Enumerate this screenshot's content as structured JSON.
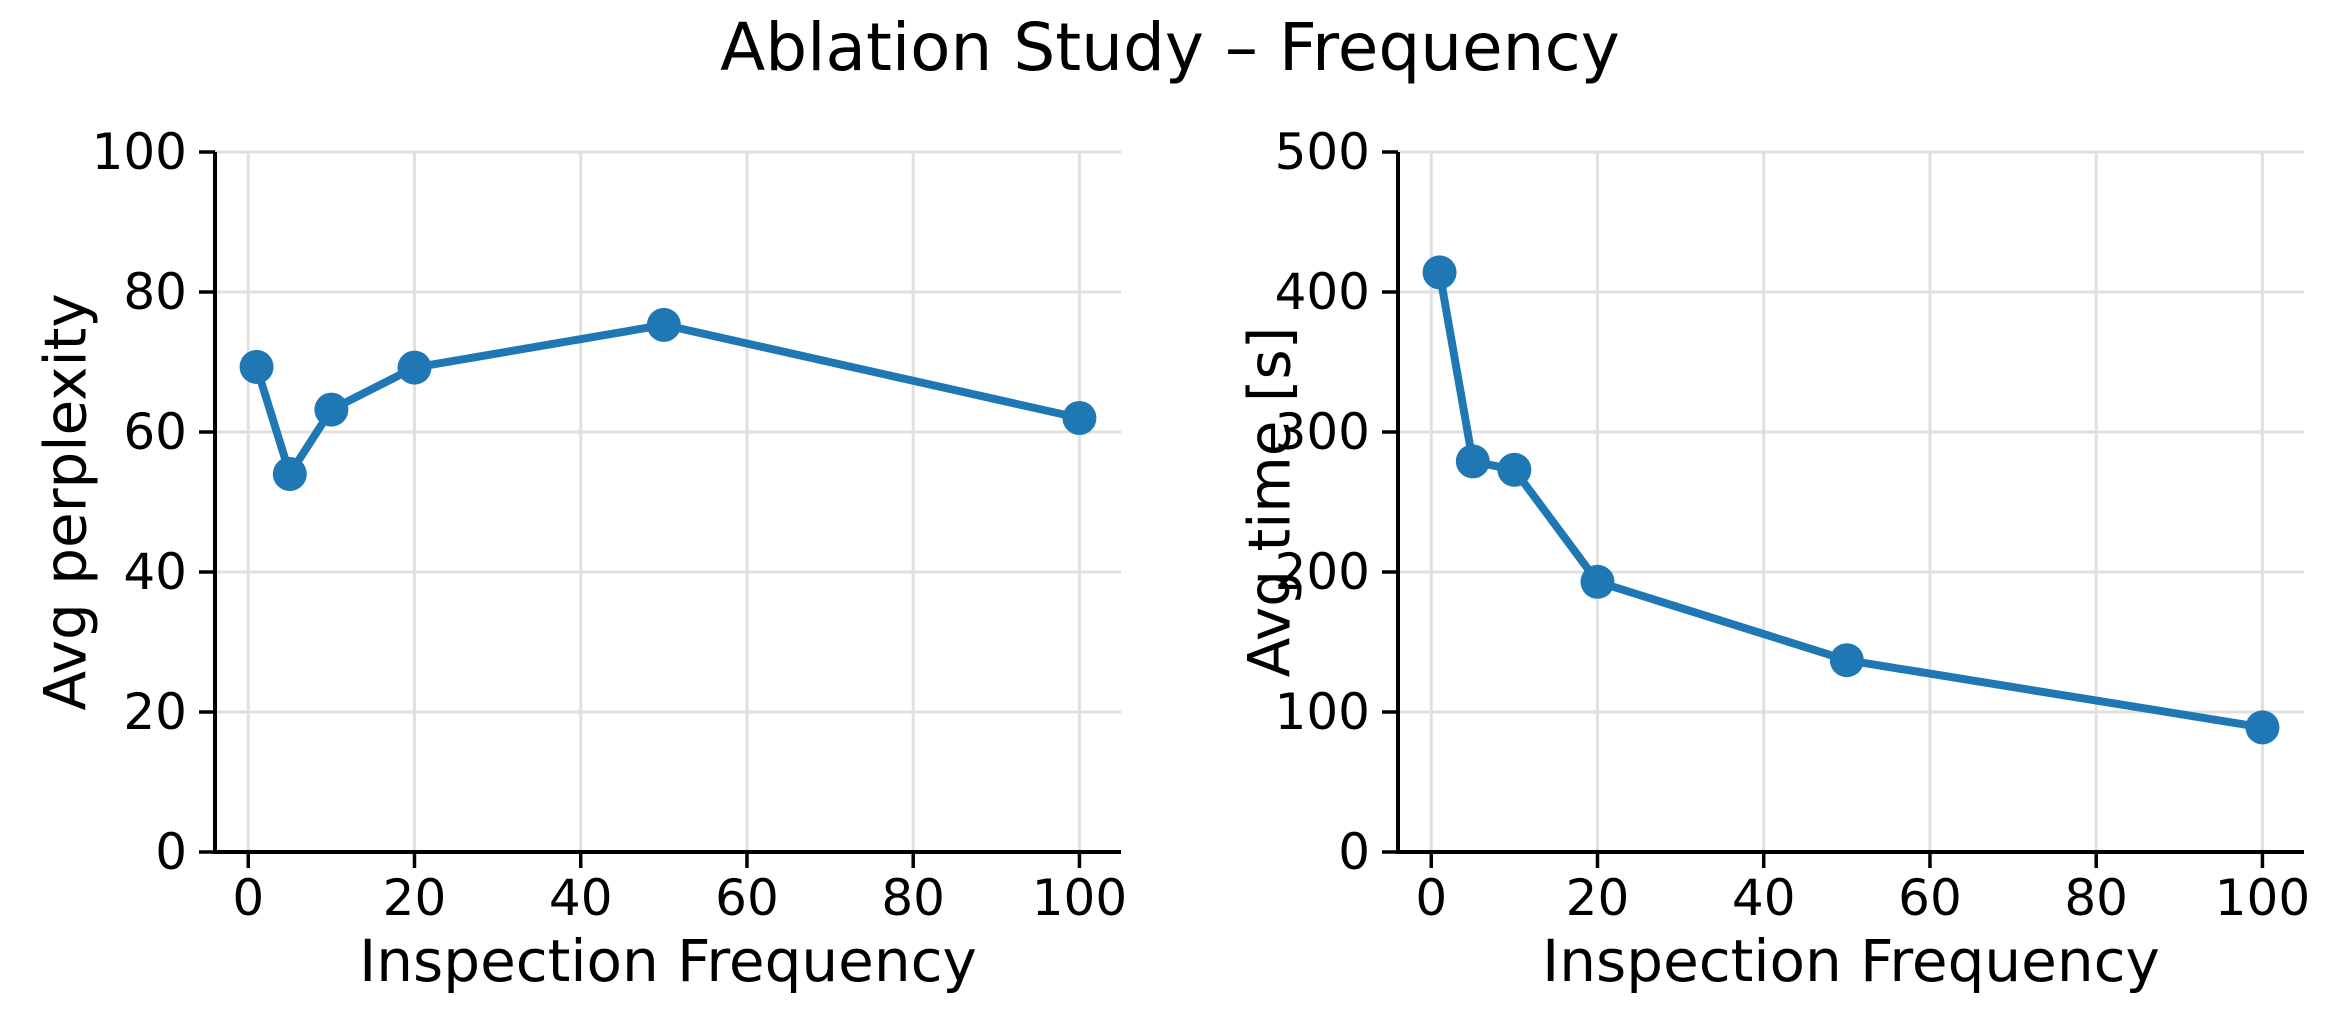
{
  "figure": {
    "title": "Ablation Study – Frequency"
  },
  "chart_data": [
    {
      "type": "line",
      "title": "",
      "xlabel": "Inspection Frequency",
      "ylabel": "Avg perplexity",
      "x": [
        1,
        5,
        10,
        20,
        50,
        100
      ],
      "series": [
        {
          "name": "avg-perplexity",
          "values": [
            69.3,
            54.0,
            63.2,
            69.2,
            75.3,
            62.0
          ]
        }
      ],
      "xlim": [
        -4,
        105
      ],
      "ylim": [
        0,
        100
      ],
      "xticks": [
        0,
        20,
        40,
        60,
        80,
        100
      ],
      "yticks": [
        0,
        20,
        40,
        60,
        80,
        100
      ],
      "grid": true,
      "legend": "none",
      "line_color": "#1f77b4",
      "marker": "circle"
    },
    {
      "type": "line",
      "title": "",
      "xlabel": "Inspection Frequency",
      "ylabel": "Avg time [s]",
      "x": [
        1,
        5,
        10,
        20,
        50,
        100
      ],
      "series": [
        {
          "name": "avg-time-s",
          "values": [
            414,
            279,
            273,
            193,
            137,
            89
          ]
        }
      ],
      "xlim": [
        -4,
        105
      ],
      "ylim": [
        0,
        500
      ],
      "xticks": [
        0,
        20,
        40,
        60,
        80,
        100
      ],
      "yticks": [
        0,
        100,
        200,
        300,
        400,
        500
      ],
      "grid": true,
      "legend": "none",
      "line_color": "#1f77b4",
      "marker": "circle"
    }
  ],
  "style": {
    "accent": "#1f77b4",
    "grid_color": "#e0e0e0",
    "spine_color": "#000000",
    "text_color": "#000000",
    "background": "#ffffff"
  }
}
